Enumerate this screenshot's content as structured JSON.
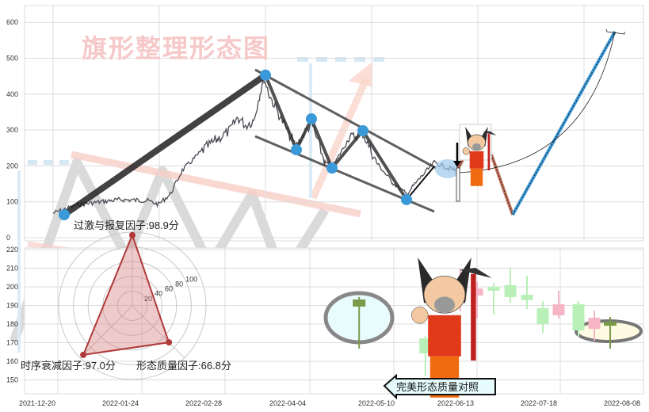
{
  "watermark_title": "旗形整理形态图",
  "callout_label": "完美形态质量对照",
  "colors": {
    "up": "#b8f0b8",
    "down": "#f5b5c5",
    "marked": "#7a9a4a",
    "pivot": "#3a9ad9",
    "radar": "#b03a3a",
    "watermark": "#f6c8c8"
  },
  "chart_data": [
    {
      "type": "line",
      "panel": "top",
      "ylim": [
        0,
        620
      ],
      "yticks": [
        0,
        100,
        200,
        300,
        400,
        500,
        600
      ],
      "grid": true,
      "pivot_prices": [
        64,
        453,
        245,
        331,
        194,
        298,
        106
      ],
      "projection_prices": [
        192,
        64,
        574
      ]
    },
    {
      "type": "candlestick",
      "panel": "bottom",
      "ylim": [
        143,
        221
      ],
      "yticks": [
        150,
        160,
        170,
        180,
        190,
        200,
        210,
        220
      ],
      "xticks": [
        "2021-12-20",
        "2022-01-24",
        "2022-02-28",
        "2022-04-04",
        "2022-05-10",
        "2022-06-13",
        "2022-07-18",
        "2022-08-08"
      ],
      "grid": true,
      "candles": [
        {
          "date": "2022-05-03",
          "open": 189.4,
          "close": 193.2,
          "high": 194.5,
          "low": 166.8,
          "kind": "marked"
        },
        {
          "date": "2022-05-31",
          "open": 164.3,
          "close": 172.3,
          "high": 173.6,
          "low": 151.9,
          "kind": "up"
        },
        {
          "date": "2022-06-07",
          "open": 171.9,
          "close": 168.1,
          "high": 172.8,
          "low": 166.8,
          "kind": "down"
        },
        {
          "date": "2022-06-15",
          "open": 200.9,
          "close": 192.3,
          "high": 209.4,
          "low": 186.8,
          "kind": "down"
        },
        {
          "date": "2022-06-22",
          "open": 199.1,
          "close": 195.3,
          "high": 202.6,
          "low": 183.0,
          "kind": "down"
        },
        {
          "date": "2022-06-29",
          "open": 197.9,
          "close": 200.0,
          "high": 202.1,
          "low": 185.1,
          "kind": "up"
        },
        {
          "date": "2022-07-06",
          "open": 194.5,
          "close": 200.9,
          "high": 210.6,
          "low": 191.5,
          "kind": "up"
        },
        {
          "date": "2022-07-13",
          "open": 192.8,
          "close": 195.7,
          "high": 206.0,
          "low": 188.1,
          "kind": "up"
        },
        {
          "date": "2022-07-19",
          "open": 180.0,
          "close": 188.5,
          "high": 192.3,
          "low": 175.3,
          "kind": "up"
        },
        {
          "date": "2022-07-23",
          "open": 190.6,
          "close": 184.7,
          "high": 197.9,
          "low": 183.0,
          "kind": "down"
        },
        {
          "date": "2022-07-28",
          "open": 176.6,
          "close": 190.6,
          "high": 192.3,
          "low": 173.2,
          "kind": "up"
        },
        {
          "date": "2022-08-01",
          "open": 183.4,
          "close": 177.4,
          "high": 187.2,
          "low": 171.1,
          "kind": "down"
        },
        {
          "date": "2022-08-05",
          "open": 179.1,
          "close": 181.3,
          "high": 183.8,
          "low": 166.8,
          "kind": "marked"
        }
      ]
    },
    {
      "type": "radar",
      "rings": [
        20,
        40,
        60,
        80,
        100
      ],
      "factors": [
        {
          "label": "过激与报复因子:98.9分",
          "value": 98.9
        },
        {
          "label": "时序衰减因子:97.0分",
          "value": 97.0
        },
        {
          "label": "形态质量因子:66.8分",
          "value": 66.8
        }
      ]
    }
  ]
}
